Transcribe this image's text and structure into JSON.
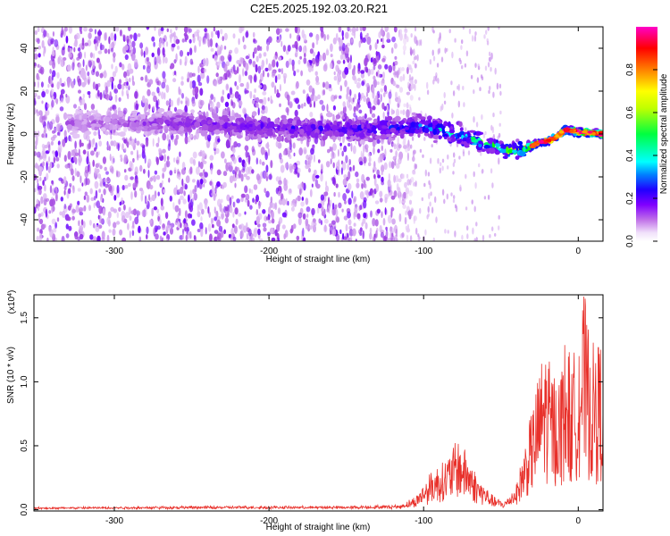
{
  "title": "C2E5.2025.192.03.20.R21",
  "chart_data": [
    {
      "type": "heatmap",
      "xlabel": "Height of straight line (km)",
      "ylabel": "Frequency (Hz)",
      "xlim": [
        -352,
        16
      ],
      "ylim": [
        -50,
        50
      ],
      "x_ticks": [
        -300,
        -200,
        -100,
        0
      ],
      "y_ticks": [
        -40,
        -20,
        0,
        20,
        40
      ],
      "colorbar": {
        "label": "Normalized spectral amplitude",
        "range": [
          0,
          1
        ],
        "ticks": [
          0.0,
          0.2,
          0.4,
          0.6,
          0.8
        ],
        "colormap": [
          "#f5e8fb",
          "#a040e0",
          "#6a00ff",
          "#0000ff",
          "#00ffff",
          "#00ff00",
          "#ffff00",
          "#ff8000",
          "#ff0000",
          "#ff00c0"
        ]
      },
      "ridge": {
        "x": [
          -300,
          -250,
          -200,
          -150,
          -120,
          -100,
          -80,
          -60,
          -45,
          -35,
          -25,
          -15,
          -8,
          0,
          16
        ],
        "freq_hz": [
          5,
          5,
          3,
          2,
          3,
          4,
          0,
          -4,
          -8,
          -7,
          -4,
          -2,
          2,
          1,
          0
        ],
        "peak_amplitude": [
          0.1,
          0.2,
          0.25,
          0.3,
          0.35,
          0.4,
          0.5,
          0.55,
          0.6,
          0.75,
          0.8,
          0.85,
          0.9,
          0.95,
          0.95
        ]
      },
      "grid": false
    },
    {
      "type": "line",
      "xlabel": "Height of straight line (km)",
      "ylabel": "SNR (10 * v/v)",
      "y_multiplier": "(x10",
      "y_multiplier_exp": "4",
      "y_multiplier_close": ")",
      "xlim": [
        -352,
        16
      ],
      "ylim": [
        -0.01,
        1.68
      ],
      "x_ticks": [
        -300,
        -200,
        -100,
        0
      ],
      "y_ticks": [
        0.0,
        0.5,
        1.0,
        1.5
      ],
      "series": [
        {
          "color": "#e8302a",
          "x": [
            -352,
            -250,
            -200,
            -150,
            -115,
            -105,
            -95,
            -85,
            -78,
            -72,
            -65,
            -55,
            -48,
            -40,
            -33,
            -28,
            -22,
            -17,
            -12,
            -8,
            -4,
            0,
            4,
            8,
            12,
            16
          ],
          "y": [
            0.01,
            0.02,
            0.02,
            0.02,
            0.03,
            0.1,
            0.3,
            0.4,
            0.55,
            0.45,
            0.25,
            0.1,
            0.05,
            0.2,
            0.6,
            0.9,
            1.3,
            1.1,
            1.05,
            1.4,
            1.1,
            1.5,
            1.7,
            1.3,
            1.3,
            1.35
          ]
        }
      ],
      "grid": false
    }
  ]
}
